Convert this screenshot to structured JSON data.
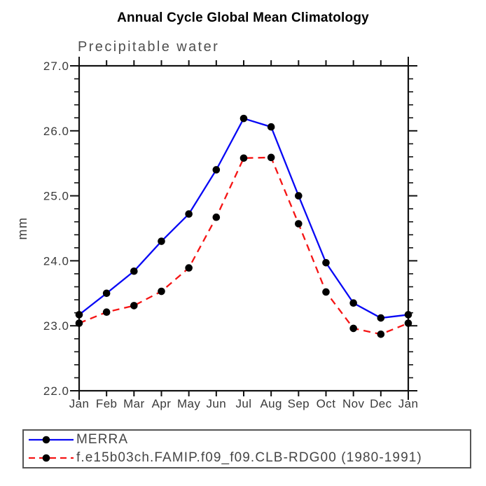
{
  "header": {
    "title": "Annual Cycle Global Mean Climatology",
    "subtitle": "Precipitable water"
  },
  "chart_data": {
    "type": "line",
    "title": "Annual Cycle Global Mean Climatology",
    "subtitle": "Precipitable water",
    "xlabel": "",
    "ylabel": "mm",
    "categories": [
      "Jan",
      "Feb",
      "Mar",
      "Apr",
      "May",
      "Jun",
      "Jul",
      "Aug",
      "Sep",
      "Oct",
      "Nov",
      "Dec",
      "Jan"
    ],
    "ylim": [
      22.0,
      27.0
    ],
    "ytick_labels": [
      "22.0",
      "23.0",
      "24.0",
      "25.0",
      "26.0",
      "27.0"
    ],
    "ytick_values": [
      22.0,
      23.0,
      24.0,
      25.0,
      26.0,
      27.0
    ],
    "minor_tick_step": 0.2,
    "grid": false,
    "legend_position": "bottom",
    "frame_color": "#111111",
    "tick_label_color": "#3a3a3a",
    "marker": {
      "shape": "circle",
      "color": "#000000",
      "radius": 5.3
    },
    "series": [
      {
        "name": "MERRA",
        "color": "#0808f5",
        "line_style": "solid",
        "values": [
          23.17,
          23.5,
          23.84,
          24.3,
          24.72,
          25.4,
          26.19,
          26.06,
          25.0,
          23.97,
          23.35,
          23.12,
          23.17
        ]
      },
      {
        "name": "f.e15b03ch.FAMIP.f09_f09.CLB-RDG00 (1980-1991)",
        "color": "#f51414",
        "line_style": "dashed",
        "values": [
          23.04,
          23.21,
          23.31,
          23.53,
          23.89,
          24.67,
          25.58,
          25.59,
          24.57,
          23.52,
          22.96,
          22.87,
          23.04
        ]
      }
    ]
  }
}
